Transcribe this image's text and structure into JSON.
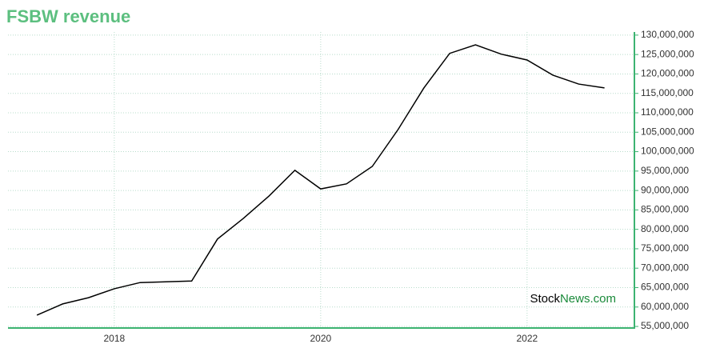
{
  "chart_data": {
    "type": "line",
    "title": "FSBW revenue",
    "x": [
      2017.25,
      2017.5,
      2017.75,
      2018,
      2018.25,
      2018.5,
      2018.75,
      2019,
      2019.25,
      2019.5,
      2019.75,
      2020,
      2020.25,
      2020.5,
      2020.75,
      2021,
      2021.25,
      2021.5,
      2021.75,
      2022,
      2022.25,
      2022.5,
      2022.75
    ],
    "series": [
      {
        "name": "FSBW revenue",
        "color": "#000000",
        "values": [
          57900000,
          60800000,
          62400000,
          64700000,
          66300000,
          66500000,
          66700000,
          77500000,
          82800000,
          88600000,
          95200000,
          90400000,
          91700000,
          96200000,
          105700000,
          116400000,
          125300000,
          127500000,
          125100000,
          123600000,
          119700000,
          117400000,
          116400000
        ]
      }
    ],
    "xlim": [
      2016.97,
      2023.04
    ],
    "xticks": [
      2018,
      2020,
      2022
    ],
    "ylim": [
      54600000,
      130800000
    ],
    "yticks": [
      {
        "value": 55000000,
        "label": "55,000,000"
      },
      {
        "value": 60000000,
        "label": "60,000,000"
      },
      {
        "value": 65000000,
        "label": "65,000,000"
      },
      {
        "value": 70000000,
        "label": "70,000,000"
      },
      {
        "value": 75000000,
        "label": "75,000,000"
      },
      {
        "value": 80000000,
        "label": "80,000,000"
      },
      {
        "value": 85000000,
        "label": "85,000,000"
      },
      {
        "value": 90000000,
        "label": "90,000,000"
      },
      {
        "value": 95000000,
        "label": "95,000,000"
      },
      {
        "value": 100000000,
        "label": "100,000,000"
      },
      {
        "value": 105000000,
        "label": "105,000,000"
      },
      {
        "value": 110000000,
        "label": "110,000,000"
      },
      {
        "value": 115000000,
        "label": "115,000,000"
      },
      {
        "value": 120000000,
        "label": "120,000,000"
      },
      {
        "value": 125000000,
        "label": "125,000,000"
      },
      {
        "value": 130000000,
        "label": "130,000,000"
      }
    ],
    "grid": true,
    "axis_color": "#3cb371",
    "watermark": [
      "Stock",
      "News",
      ".com"
    ]
  }
}
